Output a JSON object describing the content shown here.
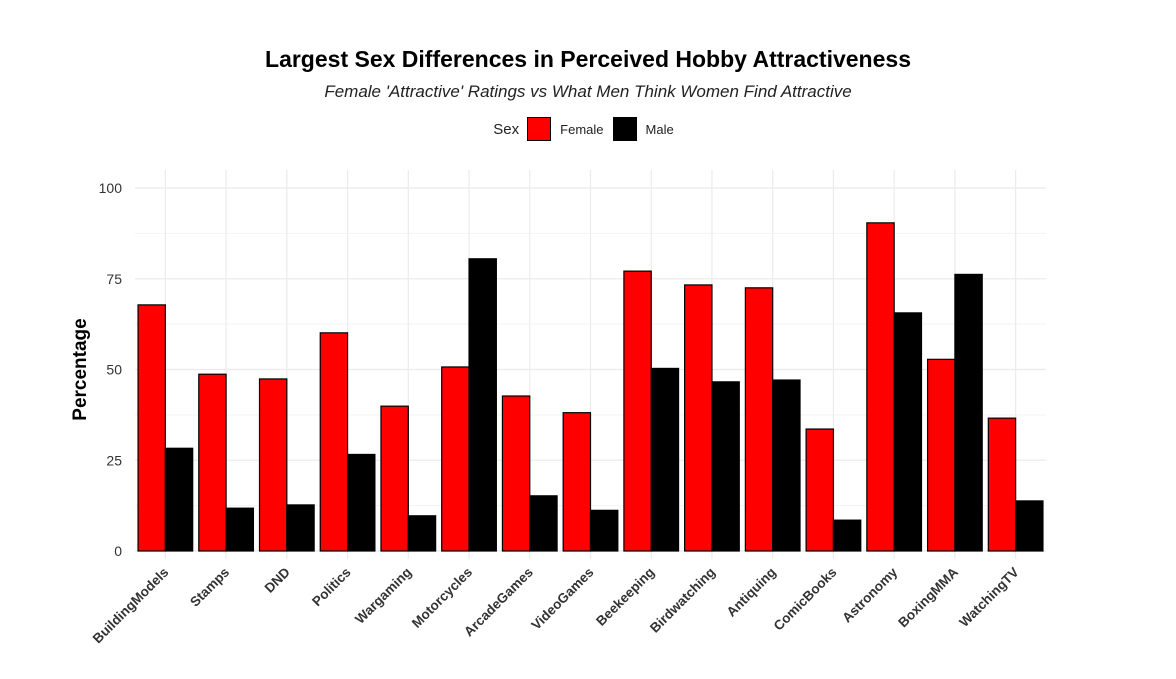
{
  "chart_data": {
    "type": "bar",
    "title": "Largest Sex Differences in Perceived Hobby Attractiveness",
    "subtitle": "Female 'Attractive' Ratings vs What Men Think Women Find Attractive",
    "xlabel": "",
    "ylabel": "Percentage",
    "ylim": [
      0,
      100
    ],
    "yticks": [
      0,
      25,
      50,
      75,
      100
    ],
    "grid": true,
    "legend": {
      "title": "Sex",
      "position": "top"
    },
    "categories": [
      "BuildingModels",
      "Stamps",
      "DND",
      "Politics",
      "Wargaming",
      "Motorcycles",
      "ArcadeGames",
      "VideoGames",
      "Beekeeping",
      "Birdwatching",
      "Antiquing",
      "ComicBooks",
      "Astronomy",
      "BoxingMMA",
      "WatchingTV"
    ],
    "series": [
      {
        "name": "Female",
        "color": "#ff0000",
        "values": [
          67.8,
          48.7,
          47.4,
          60.1,
          39.9,
          50.7,
          42.7,
          38.1,
          77.1,
          73.3,
          72.5,
          33.6,
          90.4,
          52.8,
          36.6
        ]
      },
      {
        "name": "Male",
        "color": "#000000",
        "values": [
          28.3,
          11.8,
          12.7,
          26.6,
          9.7,
          80.5,
          15.2,
          11.2,
          50.3,
          46.6,
          47.1,
          8.5,
          65.6,
          76.2,
          13.8
        ]
      }
    ]
  }
}
